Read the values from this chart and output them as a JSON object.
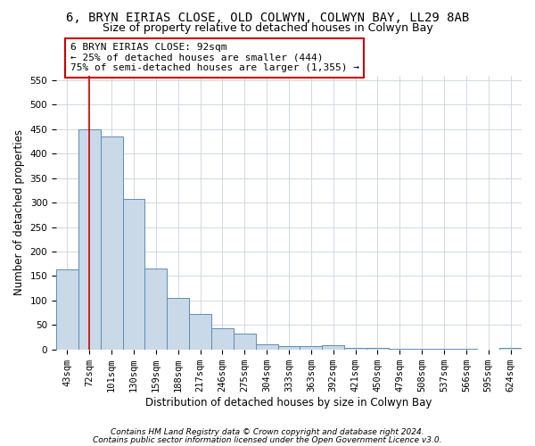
{
  "title_line1": "6, BRYN EIRIAS CLOSE, OLD COLWYN, COLWYN BAY, LL29 8AB",
  "title_line2": "Size of property relative to detached houses in Colwyn Bay",
  "xlabel": "Distribution of detached houses by size in Colwyn Bay",
  "ylabel": "Number of detached properties",
  "footnote_line1": "Contains HM Land Registry data © Crown copyright and database right 2024.",
  "footnote_line2": "Contains public sector information licensed under the Open Government Licence v3.0.",
  "categories": [
    "43sqm",
    "72sqm",
    "101sqm",
    "130sqm",
    "159sqm",
    "188sqm",
    "217sqm",
    "246sqm",
    "275sqm",
    "304sqm",
    "333sqm",
    "363sqm",
    "392sqm",
    "421sqm",
    "450sqm",
    "479sqm",
    "508sqm",
    "537sqm",
    "566sqm",
    "595sqm",
    "624sqm"
  ],
  "values": [
    163,
    450,
    435,
    307,
    165,
    106,
    73,
    44,
    32,
    10,
    7,
    7,
    8,
    3,
    3,
    2,
    1,
    1,
    1,
    0,
    4
  ],
  "bar_color": "#c9d9e8",
  "bar_edge_color": "#5b8db8",
  "highlighted_bar_index": 1,
  "highlight_line_color": "#cc0000",
  "annotation_text_line1": "6 BRYN EIRIAS CLOSE: 92sqm",
  "annotation_text_line2": "← 25% of detached houses are smaller (444)",
  "annotation_text_line3": "75% of semi-detached houses are larger (1,355) →",
  "annotation_box_color": "#cc0000",
  "ylim": [
    0,
    560
  ],
  "yticks": [
    0,
    50,
    100,
    150,
    200,
    250,
    300,
    350,
    400,
    450,
    500,
    550
  ],
  "background_color": "#ffffff",
  "grid_color": "#c8d4e0",
  "title_fontsize": 10,
  "subtitle_fontsize": 9,
  "axis_label_fontsize": 8.5,
  "tick_fontsize": 7.5,
  "annotation_fontsize": 8,
  "footnote_fontsize": 6.5
}
